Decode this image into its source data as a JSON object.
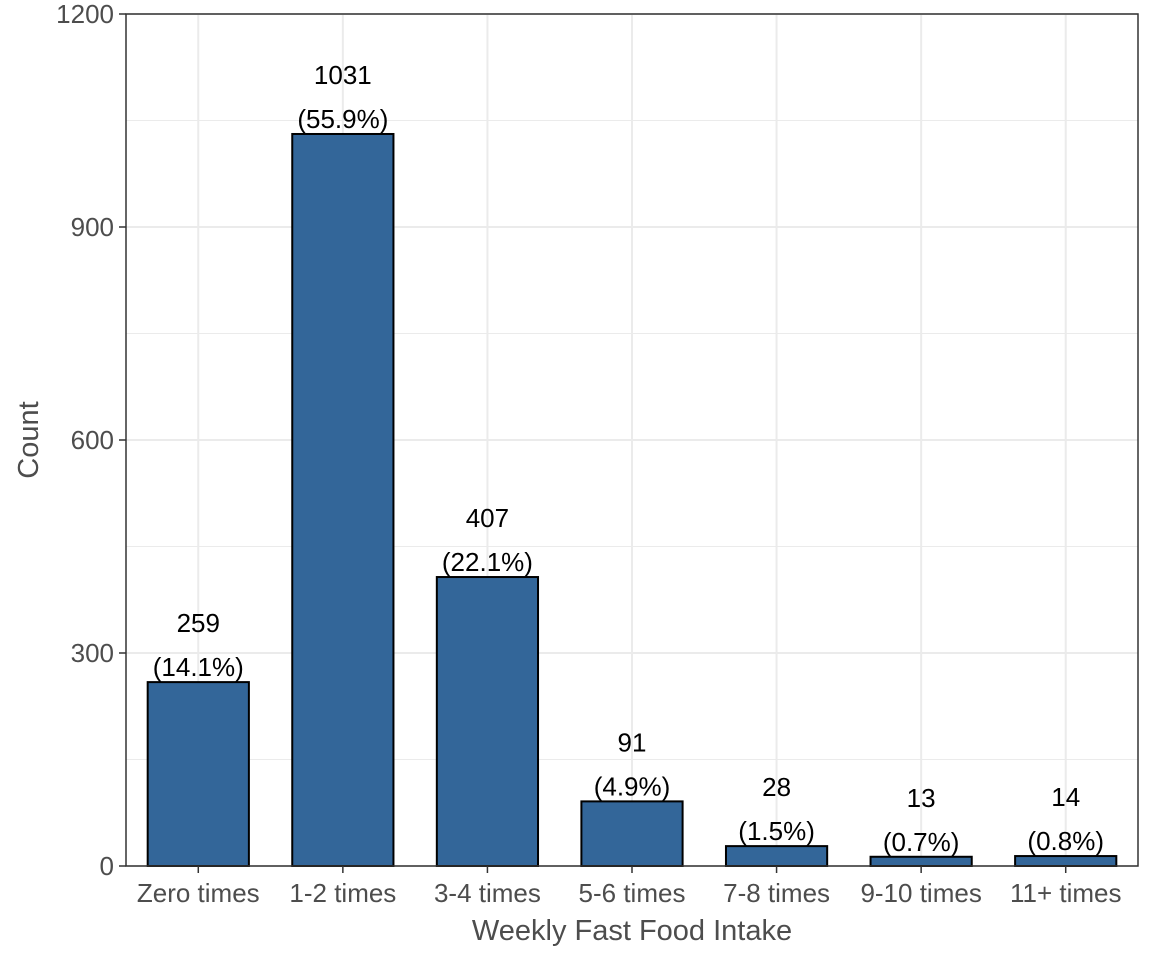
{
  "chart_data": {
    "type": "bar",
    "categories": [
      "Zero times",
      "1-2 times",
      "3-4 times",
      "5-6 times",
      "7-8 times",
      "9-10 times",
      "11+ times"
    ],
    "values": [
      259,
      1031,
      407,
      91,
      28,
      13,
      14
    ],
    "labels": {
      "counts": [
        "259",
        "1031",
        "407",
        "91",
        "28",
        "13",
        "14"
      ],
      "percents": [
        "(14.1%)",
        "(55.9%)",
        "(22.1%)",
        "(4.9%)",
        "(1.5%)",
        "(0.7%)",
        "(0.8%)"
      ]
    },
    "xlabel": "Weekly Fast Food Intake",
    "ylabel": "Count",
    "ylim": [
      0,
      1200
    ],
    "yticks": [
      0,
      300,
      600,
      900,
      1200
    ],
    "ytick_labels": [
      "0",
      "300",
      "600",
      "900",
      "1200"
    ],
    "grid": true,
    "colors": {
      "bar_fill": "#336699",
      "bar_stroke": "#000000",
      "grid": "#ebebeb",
      "panel_border": "#333333"
    }
  }
}
